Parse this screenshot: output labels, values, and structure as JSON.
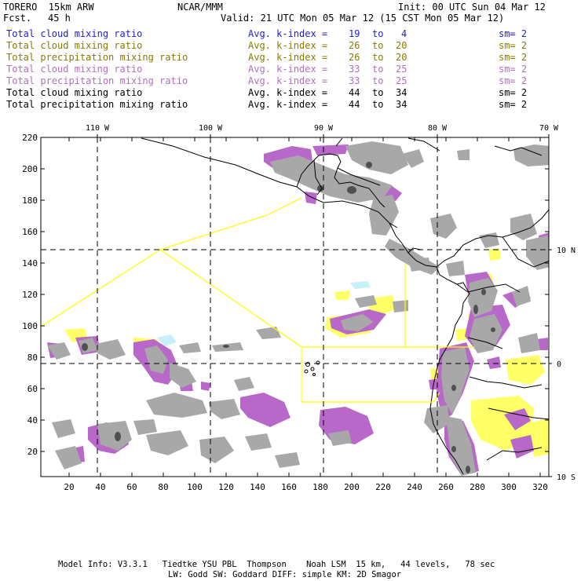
{
  "header": {
    "model": "TORERO  15km ARW",
    "org": "NCAR/MMM",
    "init": "Init: 00 UTC Sun 04 Mar 12",
    "fcst_label": "Fcst.",
    "fcst_value": "45 h",
    "valid": "Valid: 21 UTC Mon 05 Mar 12 (15 CST Mon 05 Mar 12)"
  },
  "legend": [
    {
      "field": "Total cloud mixing ratio",
      "avg": "Avg. k-index =",
      "k1": "19",
      "to": "to",
      "k2": "4",
      "sm": "sm= 2",
      "color": "#1f1fcf"
    },
    {
      "field": "Total cloud mixing ratio",
      "avg": "Avg. k-index =",
      "k1": "26",
      "to": "to",
      "k2": "20",
      "sm": "sm= 2",
      "color": "#8a7a00"
    },
    {
      "field": "Total precipitation mixing ratio",
      "avg": "Avg. k-index =",
      "k1": "26",
      "to": "to",
      "k2": "20",
      "sm": "sm= 2",
      "color": "#8a7a00"
    },
    {
      "field": "Total cloud mixing ratio",
      "avg": "Avg. k-index =",
      "k1": "33",
      "to": "to",
      "k2": "25",
      "sm": "sm= 2",
      "color": "#b070c0"
    },
    {
      "field": "Total precipitation mixing ratio",
      "avg": "Avg. k-index =",
      "k1": "33",
      "to": "to",
      "k2": "25",
      "sm": "sm= 2",
      "color": "#b070c0"
    },
    {
      "field": "Total cloud mixing ratio",
      "avg": "Avg. k-index =",
      "k1": "44",
      "to": "to",
      "k2": "34",
      "sm": "sm= 2",
      "color": "#000000"
    },
    {
      "field": "Total precipitation mixing ratio",
      "avg": "Avg. k-index =",
      "k1": "44",
      "to": "to",
      "k2": "34",
      "sm": "sm= 2",
      "color": "#000000"
    }
  ],
  "axes": {
    "x_ticks": [
      "20",
      "40",
      "60",
      "80",
      "100",
      "120",
      "140",
      "160",
      "180",
      "200",
      "220",
      "240",
      "260",
      "280",
      "300",
      "320"
    ],
    "y_ticks": [
      "20",
      "40",
      "60",
      "80",
      "100",
      "120",
      "140",
      "160",
      "180",
      "200",
      "220"
    ],
    "lon_labels": [
      "110 W",
      "100 W",
      "90 W",
      "80 W",
      "70 W"
    ],
    "lat_labels": [
      "10 N",
      "0",
      "10 S"
    ]
  },
  "colors": {
    "gray": "#a8a8a8",
    "dark_gray": "#505050",
    "yellow": "#ffff66",
    "purple": "#b868c8",
    "cyan": "#c8f0f8",
    "boundary": "#ffff00"
  },
  "footer": {
    "line1": "Model Info: V3.3.1   Tiedtke YSU PBL  Thompson    Noah LSM  15 km,   44 levels,   78 sec",
    "line2": "LW: Godd SW: Goddard DIFF: simple KM: 2D Smagor"
  }
}
